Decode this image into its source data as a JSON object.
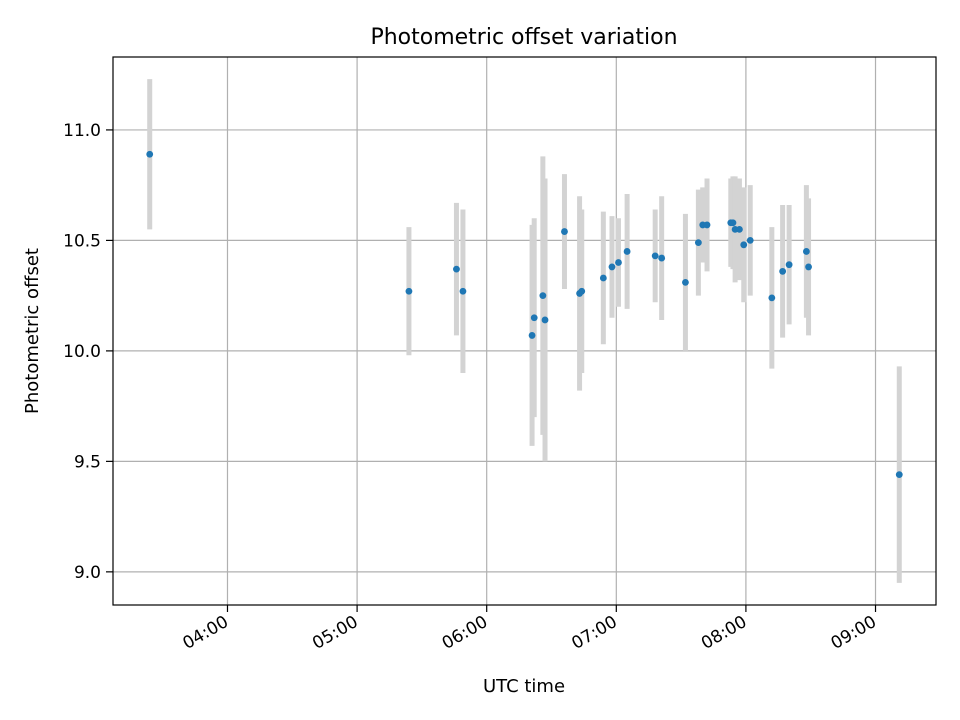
{
  "chart_data": {
    "type": "scatter",
    "title": "Photometric offset variation",
    "xlabel": "UTC time",
    "ylabel": "Photometric offset",
    "x_is_time": true,
    "xlim": [
      "03:07",
      "09:28"
    ],
    "ylim": [
      8.85,
      11.33
    ],
    "xticks": [
      "04:00",
      "05:00",
      "06:00",
      "07:00",
      "08:00",
      "09:00"
    ],
    "yticks": [
      9.0,
      9.5,
      10.0,
      10.5,
      11.0
    ],
    "ytick_labels": [
      "9.0",
      "9.5",
      "10.0",
      "10.5",
      "11.0"
    ],
    "grid": true,
    "legend": "none",
    "point_color": "#1f77b4",
    "errorbar_color": "#d3d3d3",
    "points": [
      {
        "x": "03:24",
        "y": 10.89,
        "err": 0.34
      },
      {
        "x": "05:24",
        "y": 10.27,
        "err": 0.29
      },
      {
        "x": "05:46",
        "y": 10.37,
        "err": 0.3
      },
      {
        "x": "05:49",
        "y": 10.27,
        "err": 0.37
      },
      {
        "x": "06:21",
        "y": 10.07,
        "err": 0.5
      },
      {
        "x": "06:22",
        "y": 10.15,
        "err": 0.45
      },
      {
        "x": "06:26",
        "y": 10.25,
        "err": 0.63
      },
      {
        "x": "06:27",
        "y": 10.14,
        "err": 0.64
      },
      {
        "x": "06:36",
        "y": 10.54,
        "err": 0.26
      },
      {
        "x": "06:43",
        "y": 10.26,
        "err": 0.44
      },
      {
        "x": "06:44",
        "y": 10.27,
        "err": 0.37
      },
      {
        "x": "06:54",
        "y": 10.33,
        "err": 0.3
      },
      {
        "x": "06:58",
        "y": 10.38,
        "err": 0.23
      },
      {
        "x": "07:01",
        "y": 10.4,
        "err": 0.2
      },
      {
        "x": "07:05",
        "y": 10.45,
        "err": 0.26
      },
      {
        "x": "07:18",
        "y": 10.43,
        "err": 0.21
      },
      {
        "x": "07:21",
        "y": 10.42,
        "err": 0.28
      },
      {
        "x": "07:32",
        "y": 10.31,
        "err": 0.31
      },
      {
        "x": "07:38",
        "y": 10.49,
        "err": 0.24
      },
      {
        "x": "07:40",
        "y": 10.57,
        "err": 0.17
      },
      {
        "x": "07:42",
        "y": 10.57,
        "err": 0.21
      },
      {
        "x": "07:53",
        "y": 10.58,
        "err": 0.2
      },
      {
        "x": "07:54",
        "y": 10.58,
        "err": 0.21
      },
      {
        "x": "07:55",
        "y": 10.55,
        "err": 0.24
      },
      {
        "x": "07:57",
        "y": 10.55,
        "err": 0.23
      },
      {
        "x": "07:59",
        "y": 10.48,
        "err": 0.26
      },
      {
        "x": "08:02",
        "y": 10.5,
        "err": 0.25
      },
      {
        "x": "08:12",
        "y": 10.24,
        "err": 0.32
      },
      {
        "x": "08:17",
        "y": 10.36,
        "err": 0.3
      },
      {
        "x": "08:20",
        "y": 10.39,
        "err": 0.27
      },
      {
        "x": "08:28",
        "y": 10.45,
        "err": 0.3
      },
      {
        "x": "08:29",
        "y": 10.38,
        "err": 0.31
      },
      {
        "x": "09:11",
        "y": 9.44,
        "err": 0.49
      }
    ]
  }
}
